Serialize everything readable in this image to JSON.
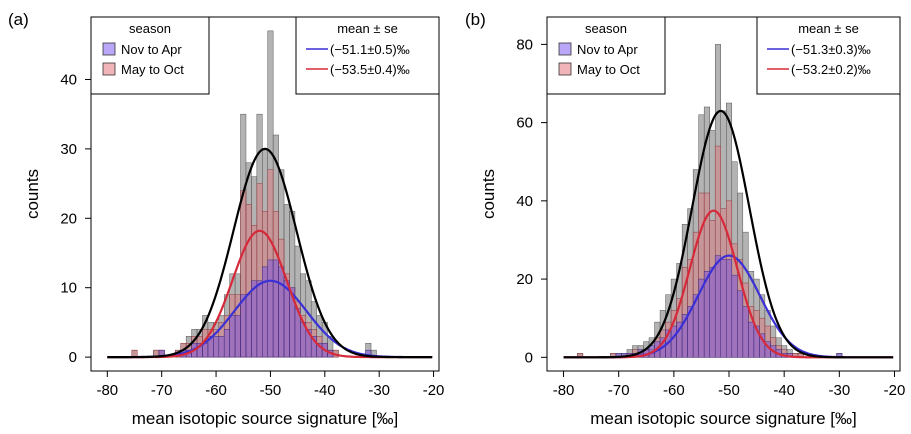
{
  "chart_data": [
    {
      "panel_label": "(a)",
      "type": "bar",
      "xlabel": "mean isotopic source signature [‰]",
      "ylabel": "counts",
      "xlim": [
        -83,
        -19
      ],
      "ylim": [
        -2,
        49
      ],
      "xticks": [
        -80,
        -70,
        -60,
        -50,
        -40,
        -30,
        -20
      ],
      "yticks": [
        0,
        10,
        20,
        30,
        40
      ],
      "bin_width": 1,
      "bins": {
        "x_start": -75.5,
        "total": [
          1,
          0,
          0,
          0,
          1,
          1,
          0,
          0,
          1,
          2,
          3,
          4,
          4,
          6,
          5,
          5,
          6,
          9,
          12,
          12,
          35,
          28,
          26,
          35,
          30,
          47,
          32,
          27,
          22,
          21,
          16,
          12,
          11,
          8,
          6,
          5,
          3,
          1,
          0,
          0,
          0,
          0,
          0,
          2,
          1
        ],
        "season_a": [
          0,
          0,
          0,
          0,
          0,
          1,
          0,
          0,
          0,
          1,
          1,
          2,
          2,
          2,
          3,
          3,
          3,
          4,
          6,
          6,
          9,
          9,
          11,
          11,
          13,
          14,
          14,
          13,
          11,
          10,
          7,
          5,
          4,
          3,
          2,
          2,
          1,
          0,
          0,
          0,
          0,
          0,
          0,
          1,
          0
        ],
        "season_b": [
          1,
          0,
          0,
          0,
          1,
          1,
          0,
          0,
          1,
          2,
          2,
          3,
          3,
          4,
          4,
          4,
          5,
          6,
          9,
          9,
          24,
          22,
          19,
          25,
          21,
          27,
          21,
          17,
          12,
          10,
          8,
          6,
          5,
          4,
          3,
          2,
          1,
          1,
          0,
          0,
          0,
          0,
          0,
          0,
          0
        ]
      },
      "curves": {
        "total": {
          "mu": -51.0,
          "sigma": 5.8,
          "peak": 30
        },
        "season_a": {
          "mu": -50.0,
          "sigma": 6.6,
          "peak": 11
        },
        "season_b": {
          "mu": -52.0,
          "sigma": 5.0,
          "peak": 18.2
        }
      },
      "legend_season": {
        "title": "season",
        "entries": [
          {
            "label": "Nov to Apr",
            "color": "#8d6cf2"
          },
          {
            "label": "May to Oct",
            "color": "#e8828a"
          }
        ]
      },
      "legend_stats": {
        "title": "mean ± se",
        "entries": [
          {
            "label": "(−51.1±0.5)‰",
            "color": "#3b2fd6"
          },
          {
            "label": "(−53.5±0.4)‰",
            "color": "#d62a3a"
          }
        ]
      }
    },
    {
      "panel_label": "(b)",
      "type": "bar",
      "xlabel": "mean isotopic source signature [‰]",
      "ylabel": "counts",
      "xlim": [
        -83,
        -19
      ],
      "ylim": [
        -3.5,
        87
      ],
      "xticks": [
        -80,
        -70,
        -60,
        -50,
        -40,
        -30,
        -20
      ],
      "yticks": [
        0,
        20,
        40,
        60,
        80
      ],
      "bin_width": 1,
      "bins": {
        "x_start": -77.5,
        "total": [
          1,
          0,
          0,
          0,
          0,
          0,
          1,
          1,
          1,
          2,
          3,
          3,
          4,
          5,
          9,
          12,
          16,
          20,
          24,
          34,
          38,
          48,
          62,
          64,
          58,
          80,
          63,
          65,
          50,
          42,
          32,
          22,
          20,
          16,
          12,
          8,
          5,
          3,
          2,
          1,
          1,
          0,
          0,
          0,
          0,
          0,
          0,
          1
        ],
        "season_a": [
          0,
          0,
          0,
          0,
          0,
          0,
          0,
          1,
          1,
          1,
          1,
          2,
          2,
          3,
          4,
          5,
          7,
          8,
          9,
          11,
          13,
          16,
          20,
          22,
          23,
          26,
          25,
          25,
          21,
          17,
          13,
          9,
          8,
          6,
          4,
          3,
          2,
          1,
          1,
          0,
          0,
          0,
          0,
          0,
          0,
          0,
          0,
          1
        ],
        "season_b": [
          1,
          0,
          0,
          0,
          0,
          0,
          1,
          0,
          0,
          1,
          2,
          1,
          2,
          2,
          5,
          7,
          9,
          12,
          15,
          23,
          25,
          32,
          42,
          42,
          35,
          54,
          38,
          40,
          29,
          25,
          19,
          13,
          12,
          10,
          8,
          5,
          3,
          2,
          1,
          1,
          1,
          0,
          0,
          0,
          0,
          0,
          0,
          0
        ]
      },
      "curves": {
        "total": {
          "mu": -51.5,
          "sigma": 5.2,
          "peak": 63
        },
        "season_a": {
          "mu": -50.0,
          "sigma": 5.6,
          "peak": 26
        },
        "season_b": {
          "mu": -52.8,
          "sigma": 4.3,
          "peak": 37.5
        }
      },
      "legend_season": {
        "title": "season",
        "entries": [
          {
            "label": "Nov to Apr",
            "color": "#8d6cf2"
          },
          {
            "label": "May to Oct",
            "color": "#e8828a"
          }
        ]
      },
      "legend_stats": {
        "title": "mean ± se",
        "entries": [
          {
            "label": "(−51.3±0.3)‰",
            "color": "#3b2fd6"
          },
          {
            "label": "(−53.2±0.2)‰",
            "color": "#d62a3a"
          }
        ]
      }
    }
  ],
  "colors": {
    "total_bar": "#9a9a9a",
    "season_a_bar": "#7d55d9",
    "season_b_bar": "#e07478",
    "total_curve": "#000000",
    "season_a_curve": "#3b2fd6",
    "season_b_curve": "#d62a3a"
  }
}
